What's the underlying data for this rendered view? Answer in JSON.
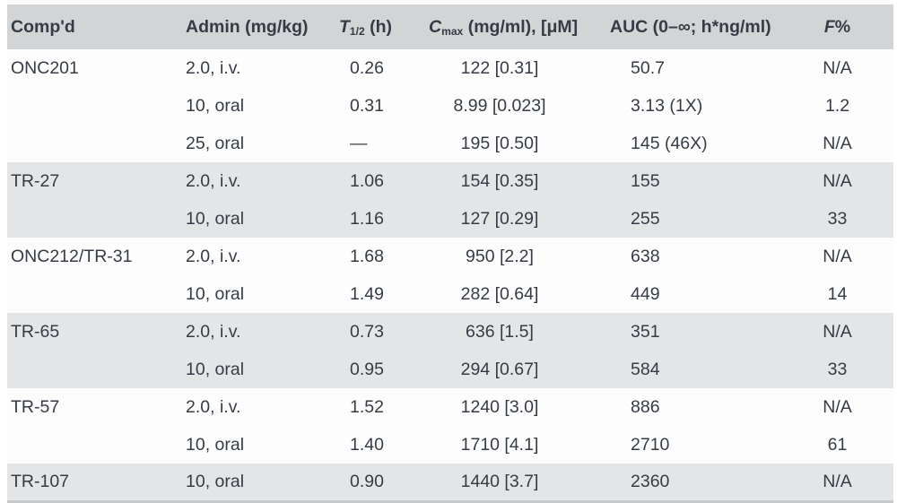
{
  "colors": {
    "header_bg": "#d3d4d5",
    "stripe_bg": "#e4e5e6",
    "row_bg": "#fdfdfd",
    "text": "#363c45",
    "bottom_border": "#c7c8ca"
  },
  "header": {
    "compd": "Comp'd",
    "admin": "Admin (mg/kg)",
    "thalf": {
      "prefix": "T",
      "sub": "1/2",
      "suffix": " (h)"
    },
    "cmax": {
      "prefix": "C",
      "sub": "max",
      "suffix": " (mg/ml), [μM]"
    },
    "auc": "AUC (0–∞; h*ng/ml)",
    "fpct": {
      "prefix": "F",
      "suffix": "%"
    }
  },
  "chart_data": {
    "type": "table",
    "columns": [
      "Comp'd",
      "Admin (mg/kg)",
      "T1/2 (h)",
      "Cmax (mg/ml), [μM]",
      "AUC (0–∞; h*ng/ml)",
      "F%"
    ],
    "rows": [
      {
        "compd": "ONC201",
        "admin": "2.0, i.v.",
        "thalf": "0.26",
        "cmax": "122 [0.31]",
        "auc": "50.7",
        "fpct": "N/A",
        "group": 0
      },
      {
        "compd": "",
        "admin": "10, oral",
        "thalf": "0.31",
        "cmax": "8.99 [0.023]",
        "auc": "3.13 (1X)",
        "fpct": "1.2",
        "group": 0
      },
      {
        "compd": "",
        "admin": "25, oral",
        "thalf": "—",
        "cmax": "195 [0.50]",
        "auc": "145 (46X)",
        "fpct": "N/A",
        "group": 0
      },
      {
        "compd": "TR-27",
        "admin": "2.0, i.v.",
        "thalf": "1.06",
        "cmax": "154 [0.35]",
        "auc": "155",
        "fpct": "N/A",
        "group": 1
      },
      {
        "compd": "",
        "admin": "10, oral",
        "thalf": "1.16",
        "cmax": "127 [0.29]",
        "auc": "255",
        "fpct": "33",
        "group": 1
      },
      {
        "compd": "ONC212/TR-31",
        "admin": "2.0, i.v.",
        "thalf": "1.68",
        "cmax": "950 [2.2]",
        "auc": "638",
        "fpct": "N/A",
        "group": 2
      },
      {
        "compd": "",
        "admin": "10, oral",
        "thalf": "1.49",
        "cmax": "282 [0.64]",
        "auc": "449",
        "fpct": "14",
        "group": 2
      },
      {
        "compd": "TR-65",
        "admin": "2.0, i.v.",
        "thalf": "0.73",
        "cmax": "636 [1.5]",
        "auc": "351",
        "fpct": "N/A",
        "group": 3
      },
      {
        "compd": "",
        "admin": "10, oral",
        "thalf": "0.95",
        "cmax": "294 [0.67]",
        "auc": "584",
        "fpct": "33",
        "group": 3
      },
      {
        "compd": "TR-57",
        "admin": "2.0, i.v.",
        "thalf": "1.52",
        "cmax": "1240 [3.0]",
        "auc": "886",
        "fpct": "N/A",
        "group": 4
      },
      {
        "compd": "",
        "admin": "10, oral",
        "thalf": "1.40",
        "cmax": "1710 [4.1]",
        "auc": "2710",
        "fpct": "61",
        "group": 4
      },
      {
        "compd": "TR-107",
        "admin": "10, oral",
        "thalf": "0.90",
        "cmax": "1440 [3.7]",
        "auc": "2360",
        "fpct": "N/A",
        "group": 5
      }
    ]
  }
}
